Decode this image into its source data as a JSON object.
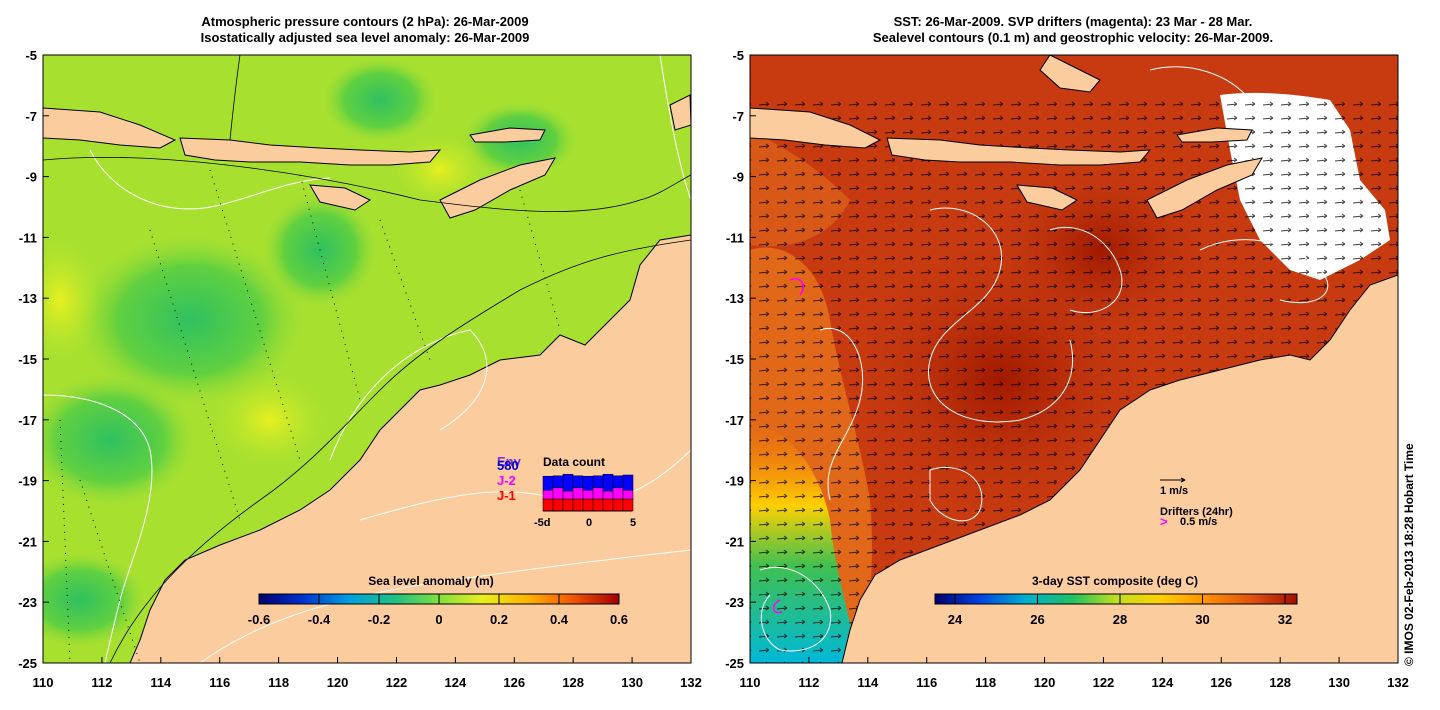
{
  "left_panel": {
    "title_line1": "Atmospheric pressure contours (2 hPa): 26-Mar-2009",
    "title_line2": "Isostatically adjusted sea level anomaly: 26-Mar-2009",
    "colorbar": {
      "label": "Sea level anomaly (m)",
      "ticks": [
        "-0.6",
        "-0.4",
        "-0.2",
        "0",
        "0.2",
        "0.4",
        "0.6"
      ]
    },
    "legend": {
      "title": "Data count",
      "satellites": [
        {
          "name": "Env",
          "color": "#7a2bd9"
        },
        {
          "name": "580",
          "color": "#0000d0"
        },
        {
          "name": "J-2",
          "color": "#ff00ff"
        },
        {
          "name": "J-1",
          "color": "#ff0000"
        }
      ],
      "axis_ticks": [
        "-5d",
        "0",
        "5"
      ],
      "bars": [
        {
          "j1": 0.3,
          "j2": 0.22,
          "env": 0.35
        },
        {
          "j1": 0.3,
          "j2": 0.28,
          "env": 0.3
        },
        {
          "j1": 0.3,
          "j2": 0.2,
          "env": 0.42
        },
        {
          "j1": 0.3,
          "j2": 0.28,
          "env": 0.3
        },
        {
          "j1": 0.3,
          "j2": 0.22,
          "env": 0.35
        },
        {
          "j1": 0.3,
          "j2": 0.28,
          "env": 0.3
        },
        {
          "j1": 0.3,
          "j2": 0.2,
          "env": 0.42
        },
        {
          "j1": 0.3,
          "j2": 0.28,
          "env": 0.3
        },
        {
          "j1": 0.3,
          "j2": 0.22,
          "env": 0.38
        }
      ]
    }
  },
  "right_panel": {
    "title_line1": "SST: 26-Mar-2009. SVP drifters (magenta): 23 Mar - 28 Mar.",
    "title_line2": "Sealevel contours (0.1 m) and geostrophic velocity: 26-Mar-2009.",
    "colorbar": {
      "label": "3-day SST composite (deg C)",
      "ticks": [
        "24",
        "26",
        "28",
        "30",
        "32"
      ]
    },
    "vector_legend": {
      "speed_label": "1 m/s",
      "drifters_label": "Drifters (24hr)",
      "drifter_speed_label": "0.5 m/s",
      "drifter_symbol": ">"
    }
  },
  "x_ticks": [
    "110",
    "112",
    "114",
    "116",
    "118",
    "120",
    "122",
    "124",
    "126",
    "128",
    "130",
    "132"
  ],
  "y_ticks": [
    "-5",
    "-7",
    "-9",
    "-11",
    "-13",
    "-15",
    "-17",
    "-19",
    "-21",
    "-23",
    "-25"
  ],
  "credit": "© IMOS 02-Feb-2013 18:28 Hobart Time",
  "colors": {
    "land": "#fbcc9e",
    "sla_ocean": "#a8e030",
    "sst_ocean": "#c83a10"
  }
}
